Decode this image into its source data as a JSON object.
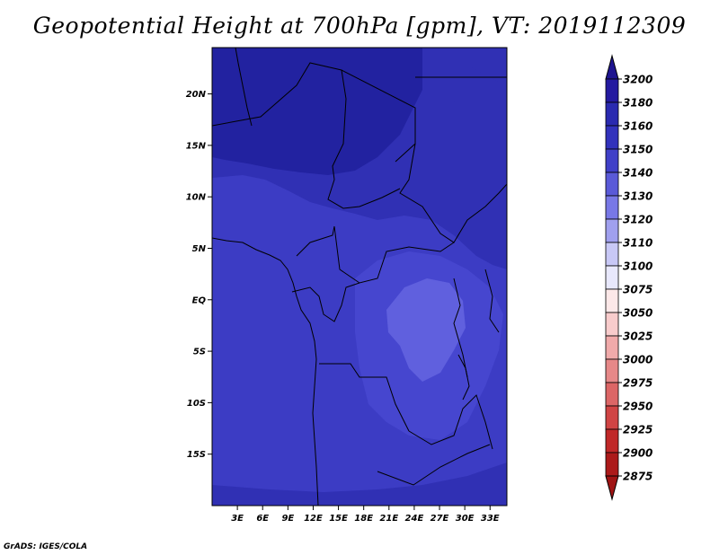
{
  "title": "Geopotential Height at 700hPa [gpm], VT: 2019112309",
  "credit": "GrADS: IGES/COLA",
  "map": {
    "lon_range": [
      0,
      35
    ],
    "lat_range": [
      -20,
      24.5
    ],
    "lat_ticks": [
      {
        "value": 20,
        "label": "20N"
      },
      {
        "value": 15,
        "label": "15N"
      },
      {
        "value": 10,
        "label": "10N"
      },
      {
        "value": 5,
        "label": "5N"
      },
      {
        "value": 0,
        "label": "EQ"
      },
      {
        "value": -5,
        "label": "5S"
      },
      {
        "value": -10,
        "label": "10S"
      },
      {
        "value": -15,
        "label": "15S"
      }
    ],
    "lon_ticks": [
      {
        "value": 3,
        "label": "3E"
      },
      {
        "value": 6,
        "label": "6E"
      },
      {
        "value": 9,
        "label": "9E"
      },
      {
        "value": 12,
        "label": "12E"
      },
      {
        "value": 15,
        "label": "15E"
      },
      {
        "value": 18,
        "label": "18E"
      },
      {
        "value": 21,
        "label": "21E"
      },
      {
        "value": 24,
        "label": "24E"
      },
      {
        "value": 27,
        "label": "27E"
      },
      {
        "value": 30,
        "label": "30E"
      },
      {
        "value": 33,
        "label": "33E"
      }
    ],
    "fill_colors": {
      "c3150": "#3c3cc4",
      "c3140": "#4646cf",
      "c3130": "#6060de",
      "c3160": "#3030b4",
      "c3180": "#2222a0"
    }
  },
  "colorbar": {
    "levels": [
      "3200",
      "3180",
      "3160",
      "3150",
      "3140",
      "3130",
      "3120",
      "3110",
      "3100",
      "3075",
      "3050",
      "3025",
      "3000",
      "2975",
      "2950",
      "2925",
      "2900",
      "2875"
    ],
    "top_color": "#1e1490",
    "bottom_color": "#a01414",
    "colors": [
      "#241aa0",
      "#2a2ab0",
      "#3232bc",
      "#4040c8",
      "#5a5ad8",
      "#7878e6",
      "#a0a0ee",
      "#c8c8f6",
      "#e8e8fc",
      "#fce8e8",
      "#f8cccc",
      "#f0aaaa",
      "#e68888",
      "#dc6666",
      "#d04444",
      "#c02828",
      "#ac1a1a"
    ]
  }
}
